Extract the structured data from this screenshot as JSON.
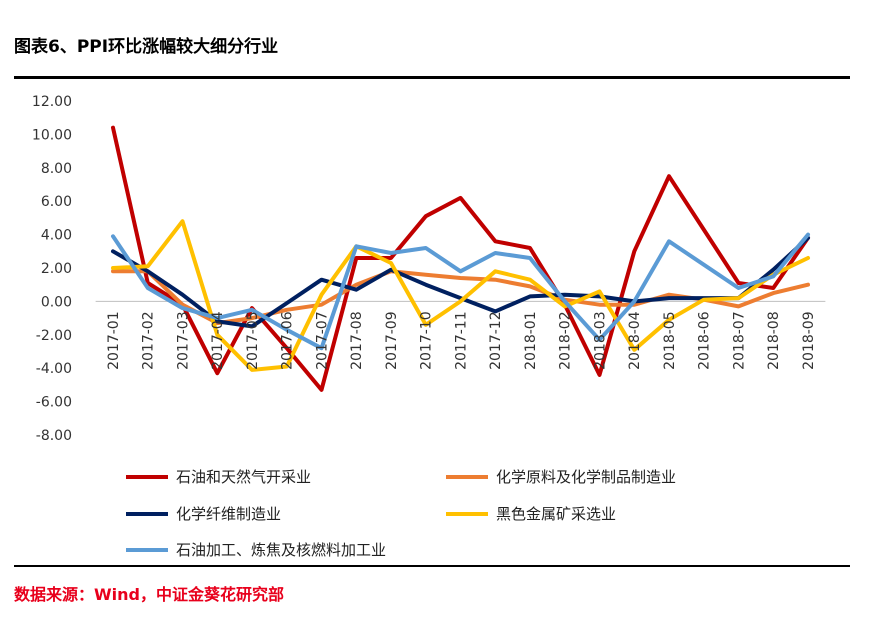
{
  "header": {
    "title": "图表6、PPI环比涨幅较大细分行业"
  },
  "footer": {
    "source": "数据来源：Wind，中证金葵花研究部"
  },
  "chart_data": {
    "type": "line",
    "title": "图表6、PPI环比涨幅较大细分行业",
    "xlabel": "",
    "ylabel": "",
    "ylim": [
      -8,
      12
    ],
    "yticks": [
      "12.00",
      "10.00",
      "8.00",
      "6.00",
      "4.00",
      "2.00",
      "0.00",
      "-2.00",
      "-4.00",
      "-6.00",
      "-8.00"
    ],
    "categories": [
      "2017-01",
      "2017-02",
      "2017-03",
      "2017-04",
      "2017-05",
      "2017-06",
      "2017-07",
      "2017-08",
      "2017-09",
      "2017-10",
      "2017-11",
      "2017-12",
      "2018-01",
      "2018-02",
      "2018-03",
      "2018-04",
      "2018-05",
      "2018-06",
      "2018-07",
      "2018-08",
      "2018-09"
    ],
    "legend_position": "bottom",
    "series": [
      {
        "name": "石油和天然气开采业",
        "color": "#c00000",
        "values": [
          10.4,
          1.1,
          -0.2,
          -4.3,
          -0.4,
          -2.8,
          -5.3,
          2.6,
          2.6,
          5.1,
          6.2,
          3.6,
          3.2,
          -0.2,
          -4.4,
          3.0,
          7.5,
          4.3,
          1.1,
          0.8,
          3.8
        ]
      },
      {
        "name": "化学原料及化学制品制造业",
        "color": "#ed7d31",
        "values": [
          1.8,
          1.8,
          -0.2,
          -1.3,
          -1.0,
          -0.5,
          -0.2,
          1.0,
          1.8,
          1.6,
          1.4,
          1.3,
          0.9,
          0.1,
          -0.2,
          -0.2,
          0.4,
          0.1,
          -0.3,
          0.5,
          1.0
        ]
      },
      {
        "name": "化学纤维制造业",
        "color": "#002060",
        "values": [
          3.0,
          1.8,
          0.4,
          -1.2,
          -1.5,
          -0.1,
          1.3,
          0.7,
          1.9,
          1.0,
          0.2,
          -0.6,
          0.3,
          0.4,
          0.3,
          0.0,
          0.2,
          0.2,
          0.2,
          1.9,
          3.8
        ]
      },
      {
        "name": "黑色金属矿采选业",
        "color": "#ffc000",
        "values": [
          2.0,
          2.1,
          4.8,
          -2.0,
          -4.1,
          -3.9,
          0.4,
          3.3,
          2.3,
          -1.4,
          0.0,
          1.8,
          1.3,
          -0.3,
          0.6,
          -2.9,
          -1.1,
          0.1,
          0.2,
          1.6,
          2.6
        ]
      },
      {
        "name": "石油加工、炼焦及核燃料加工业",
        "color": "#5b9bd5",
        "values": [
          3.9,
          0.8,
          -0.4,
          -1.0,
          -0.5,
          -1.7,
          -2.8,
          3.3,
          2.9,
          3.2,
          1.8,
          2.9,
          2.6,
          0.0,
          -2.3,
          0.0,
          3.6,
          2.2,
          0.8,
          1.5,
          4.0
        ]
      }
    ]
  }
}
